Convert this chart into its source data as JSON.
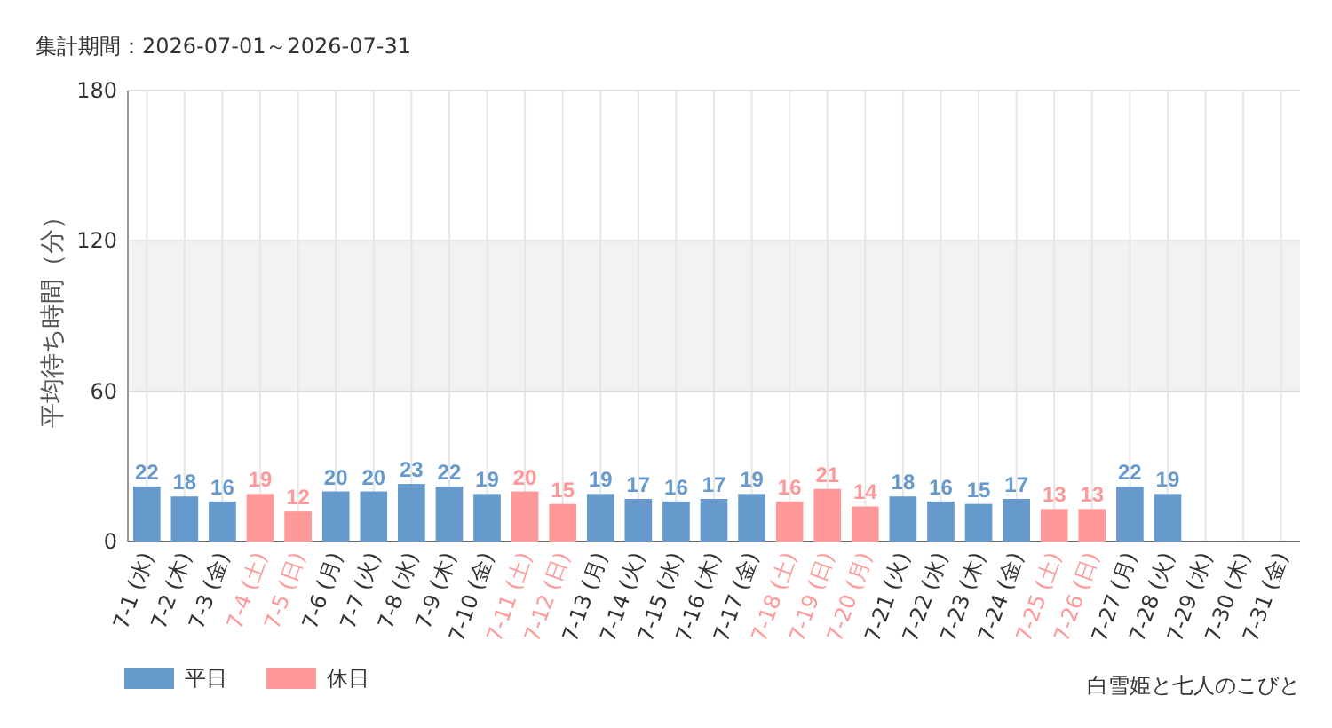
{
  "chart_data": {
    "type": "bar",
    "subtitle": "集計期間：2026-07-01～2026-07-31",
    "ylabel": "平均待ち時間（分）",
    "categories": [
      "7-1 (水)",
      "7-2 (木)",
      "7-3 (金)",
      "7-4 (土)",
      "7-5 (日)",
      "7-6 (月)",
      "7-7 (火)",
      "7-8 (水)",
      "7-9 (木)",
      "7-10 (金)",
      "7-11 (土)",
      "7-12 (日)",
      "7-13 (月)",
      "7-14 (火)",
      "7-15 (水)",
      "7-16 (木)",
      "7-17 (金)",
      "7-18 (土)",
      "7-19 (日)",
      "7-20 (月)",
      "7-21 (火)",
      "7-22 (水)",
      "7-23 (木)",
      "7-24 (金)",
      "7-25 (土)",
      "7-26 (日)",
      "7-27 (月)",
      "7-28 (火)",
      "7-29 (水)",
      "7-30 (木)",
      "7-31 (金)"
    ],
    "series": [
      {
        "name": "平日",
        "color": "#6699cc",
        "values": [
          22,
          18,
          16,
          null,
          null,
          20,
          20,
          23,
          22,
          19,
          null,
          null,
          19,
          17,
          16,
          17,
          19,
          null,
          null,
          null,
          18,
          16,
          15,
          17,
          null,
          null,
          22,
          19,
          null,
          null,
          null
        ]
      },
      {
        "name": "休日",
        "color": "#ff9999",
        "values": [
          null,
          null,
          null,
          19,
          12,
          null,
          null,
          null,
          null,
          null,
          20,
          15,
          null,
          null,
          null,
          null,
          null,
          16,
          21,
          14,
          null,
          null,
          null,
          null,
          13,
          13,
          null,
          null,
          null,
          null,
          null
        ]
      }
    ],
    "ylim": [
      0,
      180
    ],
    "yticks": [
      0,
      60,
      120,
      180
    ],
    "grid": true,
    "bands": [
      {
        "axis": "y",
        "from": 60,
        "to": 120,
        "color": "#f2f2f2"
      }
    ],
    "legend": "bottom left",
    "data_labels": true,
    "annotations": [
      "白雪姫と七人のこびと"
    ]
  }
}
